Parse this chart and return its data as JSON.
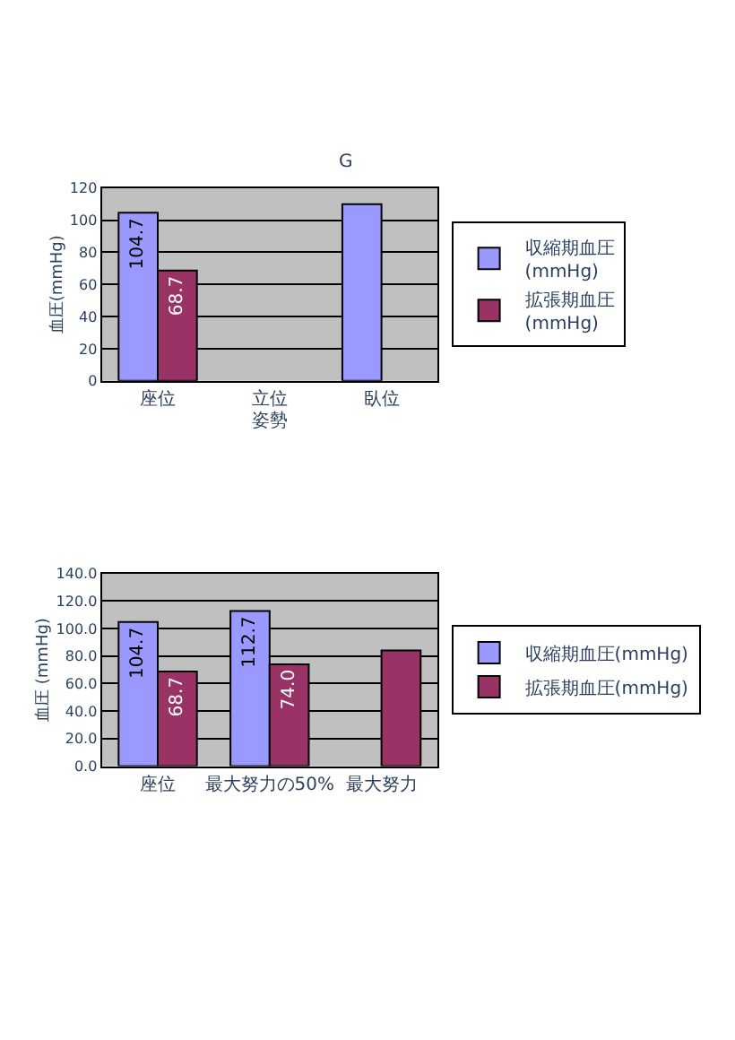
{
  "chart_data": [
    {
      "type": "bar",
      "title": "G",
      "xlabel": "姿勢",
      "ylabel": "血圧(mmHg)",
      "categories": [
        "座位",
        "立位",
        "臥位"
      ],
      "series": [
        {
          "name": "収縮期血圧\n(mmHg)",
          "color": "#9999ff",
          "values": [
            104.7,
            null,
            110
          ],
          "value_labels": [
            "104.7",
            null,
            null
          ]
        },
        {
          "name": "拡張期血圧\n(mmHg)",
          "color": "#993366",
          "values": [
            68.7,
            null,
            null
          ],
          "value_labels": [
            "68.7",
            null,
            null
          ]
        }
      ],
      "ylim": [
        0,
        120
      ],
      "yticks": [
        0,
        20,
        40,
        60,
        80,
        100,
        120
      ],
      "grid": "y",
      "legend": "right"
    },
    {
      "type": "bar",
      "ylabel": "血圧 (mmHg)",
      "categories": [
        "座位",
        "最大努力の50%",
        "最大努力"
      ],
      "series": [
        {
          "name": "収縮期血圧(mmHg)",
          "color": "#9999ff",
          "values": [
            104.7,
            112.7,
            null
          ],
          "value_labels": [
            "104.7",
            "112.7",
            null
          ]
        },
        {
          "name": "拡張期血圧(mmHg)",
          "color": "#993366",
          "values": [
            68.7,
            74.0,
            84
          ],
          "value_labels": [
            "68.7",
            "74.0",
            null
          ]
        }
      ],
      "ylim": [
        0,
        140
      ],
      "yticks": [
        {
          "value": 0,
          "label": "0.0"
        },
        {
          "value": 20,
          "label": "20.0"
        },
        {
          "value": 40,
          "label": "40.0"
        },
        {
          "value": 60,
          "label": "60.0"
        },
        {
          "value": 80,
          "label": "80.0"
        },
        {
          "value": 100,
          "label": "100.0"
        },
        {
          "value": 120,
          "label": "120.0"
        },
        {
          "value": 140,
          "label": "140.0"
        }
      ],
      "grid": "y",
      "legend": "right"
    }
  ]
}
